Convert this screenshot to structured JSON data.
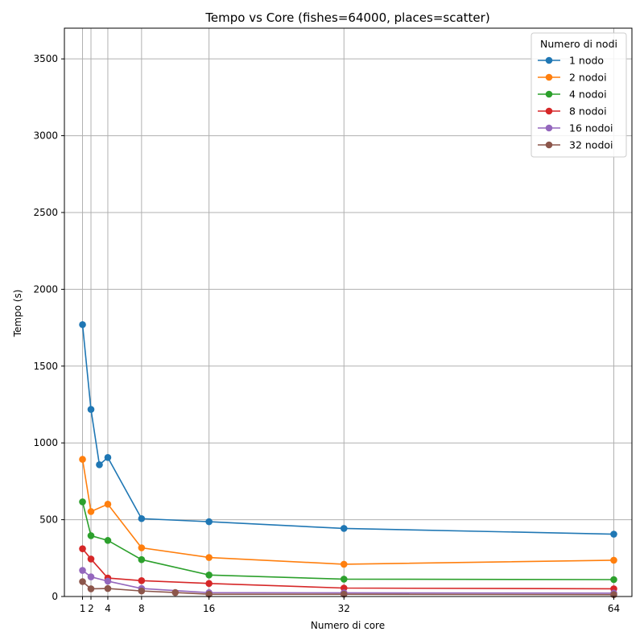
{
  "chart_data": {
    "type": "line",
    "title": "Tempo vs Core (fishes=64000, places=scatter)",
    "xlabel": "Numero di core",
    "ylabel": "Tempo (s)",
    "xlim": [
      -1.15,
      66.15
    ],
    "ylim": [
      0,
      3700
    ],
    "xticks": [
      1,
      2,
      4,
      8,
      16,
      32,
      64
    ],
    "yticks": [
      0,
      500,
      1000,
      1500,
      2000,
      2500,
      3000,
      3500
    ],
    "grid": true,
    "legend": {
      "title": "Numero di nodi",
      "placement": "top-right"
    },
    "series": [
      {
        "name": "1 nodo",
        "color": "#1f77b4",
        "points": [
          [
            1,
            1770
          ],
          [
            2,
            1218
          ],
          [
            3,
            858
          ],
          [
            4,
            905
          ],
          [
            8,
            507
          ],
          [
            16,
            487
          ],
          [
            32,
            443
          ],
          [
            64,
            406
          ]
        ]
      },
      {
        "name": "2 nodoi",
        "color": "#ff7f0e",
        "points": [
          [
            1,
            893
          ],
          [
            2,
            553
          ],
          [
            4,
            601
          ],
          [
            8,
            317
          ],
          [
            16,
            254
          ],
          [
            32,
            210
          ],
          [
            64,
            236
          ]
        ]
      },
      {
        "name": "4 nodoi",
        "color": "#2ca02c",
        "points": [
          [
            1,
            616
          ],
          [
            2,
            396
          ],
          [
            4,
            365
          ],
          [
            8,
            240
          ],
          [
            16,
            140
          ],
          [
            32,
            113
          ],
          [
            64,
            110
          ]
        ]
      },
      {
        "name": "8 nodoi",
        "color": "#d62728",
        "points": [
          [
            1,
            311
          ],
          [
            2,
            244
          ],
          [
            4,
            120
          ],
          [
            8,
            103
          ],
          [
            16,
            85
          ],
          [
            32,
            55
          ],
          [
            64,
            50
          ]
        ]
      },
      {
        "name": "16 nodoi",
        "color": "#9467bd",
        "points": [
          [
            1,
            170
          ],
          [
            2,
            128
          ],
          [
            4,
            100
          ],
          [
            8,
            52
          ],
          [
            16,
            25
          ],
          [
            32,
            24
          ],
          [
            64,
            22
          ]
        ]
      },
      {
        "name": "32 nodoi",
        "color": "#8c564b",
        "points": [
          [
            1,
            97
          ],
          [
            2,
            50
          ],
          [
            4,
            52
          ],
          [
            8,
            36
          ],
          [
            12,
            26
          ],
          [
            16,
            15
          ],
          [
            32,
            15
          ],
          [
            64,
            12
          ]
        ]
      }
    ]
  }
}
